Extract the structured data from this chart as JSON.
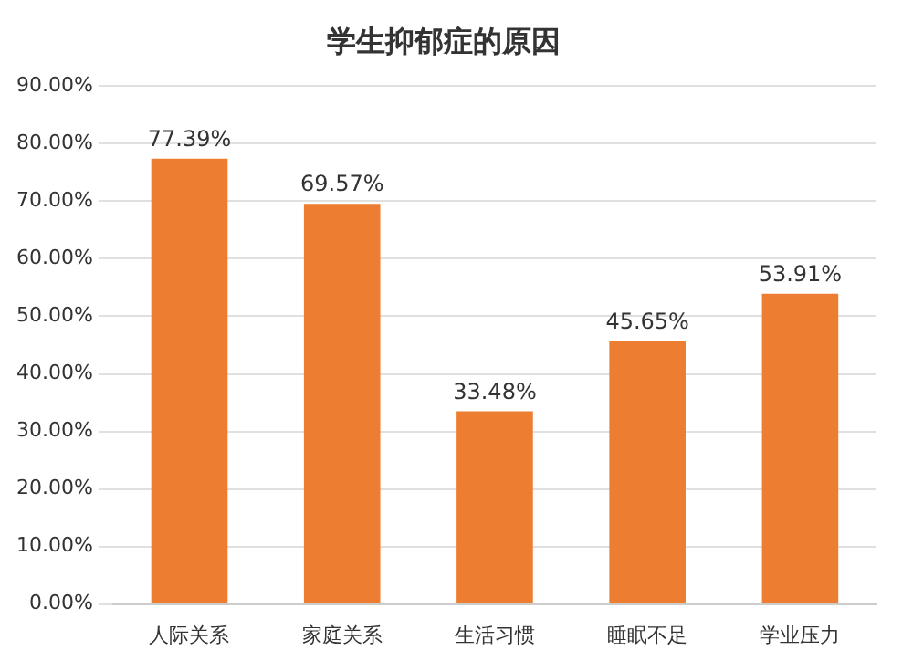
{
  "chart_data": {
    "type": "bar",
    "title": "学生抑郁症的原因",
    "categories": [
      "人际关系",
      "家庭关系",
      "生活习惯",
      "睡眠不足",
      "学业压力"
    ],
    "values": [
      77.39,
      69.57,
      33.48,
      45.65,
      53.91
    ],
    "value_labels": [
      "77.39%",
      "69.57%",
      "33.48%",
      "45.65%",
      "53.91%"
    ],
    "color": "#ed7d31",
    "ylim": [
      0,
      90
    ],
    "yticks": [
      {
        "value": 0,
        "label": "0.00%"
      },
      {
        "value": 10,
        "label": "10.00%"
      },
      {
        "value": 20,
        "label": "20.00%"
      },
      {
        "value": 30,
        "label": "30.00%"
      },
      {
        "value": 40,
        "label": "40.00%"
      },
      {
        "value": 50,
        "label": "50.00%"
      },
      {
        "value": 60,
        "label": "60.00%"
      },
      {
        "value": 70,
        "label": "70.00%"
      },
      {
        "value": 80,
        "label": "80.00%"
      },
      {
        "value": 90,
        "label": "90.00%"
      }
    ],
    "grid": "y"
  }
}
